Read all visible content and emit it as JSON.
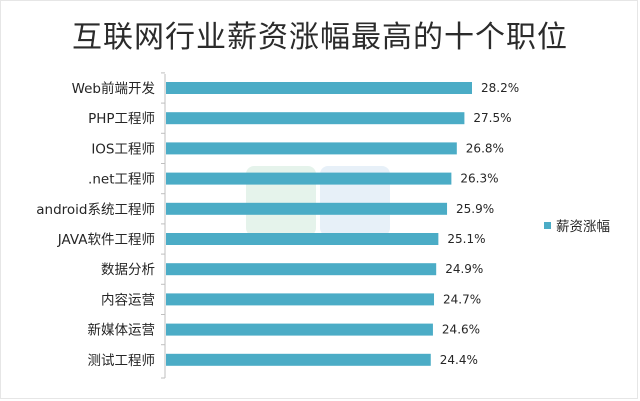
{
  "chart_data": {
    "type": "bar",
    "orientation": "horizontal",
    "title": "互联网行业薪资涨幅最高的十个职位",
    "categories": [
      "Web前端开发",
      "PHP工程师",
      "IOS工程师",
      ".net工程师",
      "android系统工程师",
      "JAVA软件工程师",
      "数据分析",
      "内容运营",
      "新媒体运营",
      "测试工程师"
    ],
    "series": [
      {
        "name": "薪资涨幅",
        "values": [
          28.2,
          27.5,
          26.8,
          26.3,
          25.9,
          25.1,
          24.9,
          24.7,
          24.6,
          24.4
        ],
        "labels": [
          "28.2%",
          "27.5%",
          "26.8%",
          "26.3%",
          "25.9%",
          "25.1%",
          "24.9%",
          "24.7%",
          "24.6%",
          "24.4%"
        ]
      }
    ],
    "legend": "right",
    "grid": false,
    "bar_color": "#4bacc6"
  }
}
